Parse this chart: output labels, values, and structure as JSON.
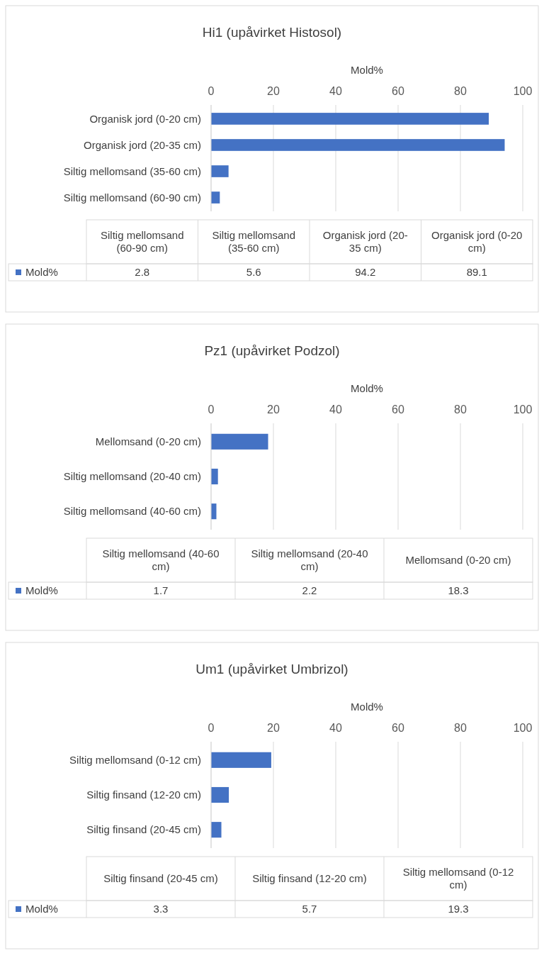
{
  "chart_data": [
    {
      "type": "bar",
      "orientation": "horizontal",
      "title": "Hi1 (upåvirket Histosol)",
      "xlabel": "Mold%",
      "categories": [
        "Organisk jord (0-20 cm)",
        "Organisk jord (20-35 cm)",
        "Siltig mellomsand (35-60 cm)",
        "Siltig mellomsand (60-90 cm)"
      ],
      "series": [
        {
          "color": "#4472c4",
          "values": [
            89.1,
            94.2,
            5.6,
            2.8
          ]
        }
      ],
      "xlim": [
        0,
        100
      ],
      "xticks": [
        0,
        20,
        40,
        60,
        80,
        100
      ],
      "grid": "x"
    },
    {
      "type": "other",
      "categories": [
        "Siltig mellomsand (60-90 cm)",
        "Siltig mellomsand (35-60 cm)",
        "Organisk jord (20-35 cm)",
        "Organisk jord (0-20 cm)"
      ],
      "series": [
        {
          "name": "Mold%",
          "color": "#4472c4",
          "values": [
            2.8,
            5.6,
            94.2,
            89.1
          ]
        }
      ],
      "data_labels": true
    },
    {
      "type": "bar",
      "orientation": "horizontal",
      "title": "Pz1 (upåvirket Podzol)",
      "xlabel": "Mold%",
      "categories": [
        "Mellomsand (0-20 cm)",
        "Siltig mellomsand (20-40 cm)",
        "Siltig mellomsand (40-60 cm)"
      ],
      "series": [
        {
          "color": "#4472c4",
          "values": [
            18.3,
            2.2,
            1.7
          ]
        }
      ],
      "xlim": [
        0,
        100
      ],
      "xticks": [
        0,
        20,
        40,
        60,
        80,
        100
      ],
      "grid": "x"
    },
    {
      "type": "other",
      "categories": [
        "Siltig mellomsand (40-60 cm)",
        "Siltig mellomsand (20-40 cm)",
        "Mellomsand (0-20 cm)"
      ],
      "series": [
        {
          "name": "Mold%",
          "color": "#4472c4",
          "values": [
            1.7,
            2.2,
            18.3
          ]
        }
      ],
      "data_labels": true
    },
    {
      "type": "bar",
      "orientation": "horizontal",
      "title": "Um1 (upåvirket Umbrizol)",
      "xlabel": "Mold%",
      "categories": [
        "Siltig mellomsand (0-12 cm)",
        "Siltig finsand (12-20 cm)",
        "Siltig finsand (20-45 cm)"
      ],
      "series": [
        {
          "color": "#4472c4",
          "values": [
            19.3,
            5.7,
            3.3
          ]
        }
      ],
      "xlim": [
        0,
        100
      ],
      "xticks": [
        0,
        20,
        40,
        60,
        80,
        100
      ],
      "grid": "x"
    },
    {
      "type": "other",
      "categories": [
        "Siltig finsand (20-45 cm)",
        "Siltig finsand (12-20 cm)",
        "Siltig mellomsand (0-12 cm)"
      ],
      "series": [
        {
          "name": "Mold%",
          "color": "#4472c4",
          "values": [
            3.3,
            5.7,
            19.3
          ]
        }
      ],
      "data_labels": true
    }
  ]
}
